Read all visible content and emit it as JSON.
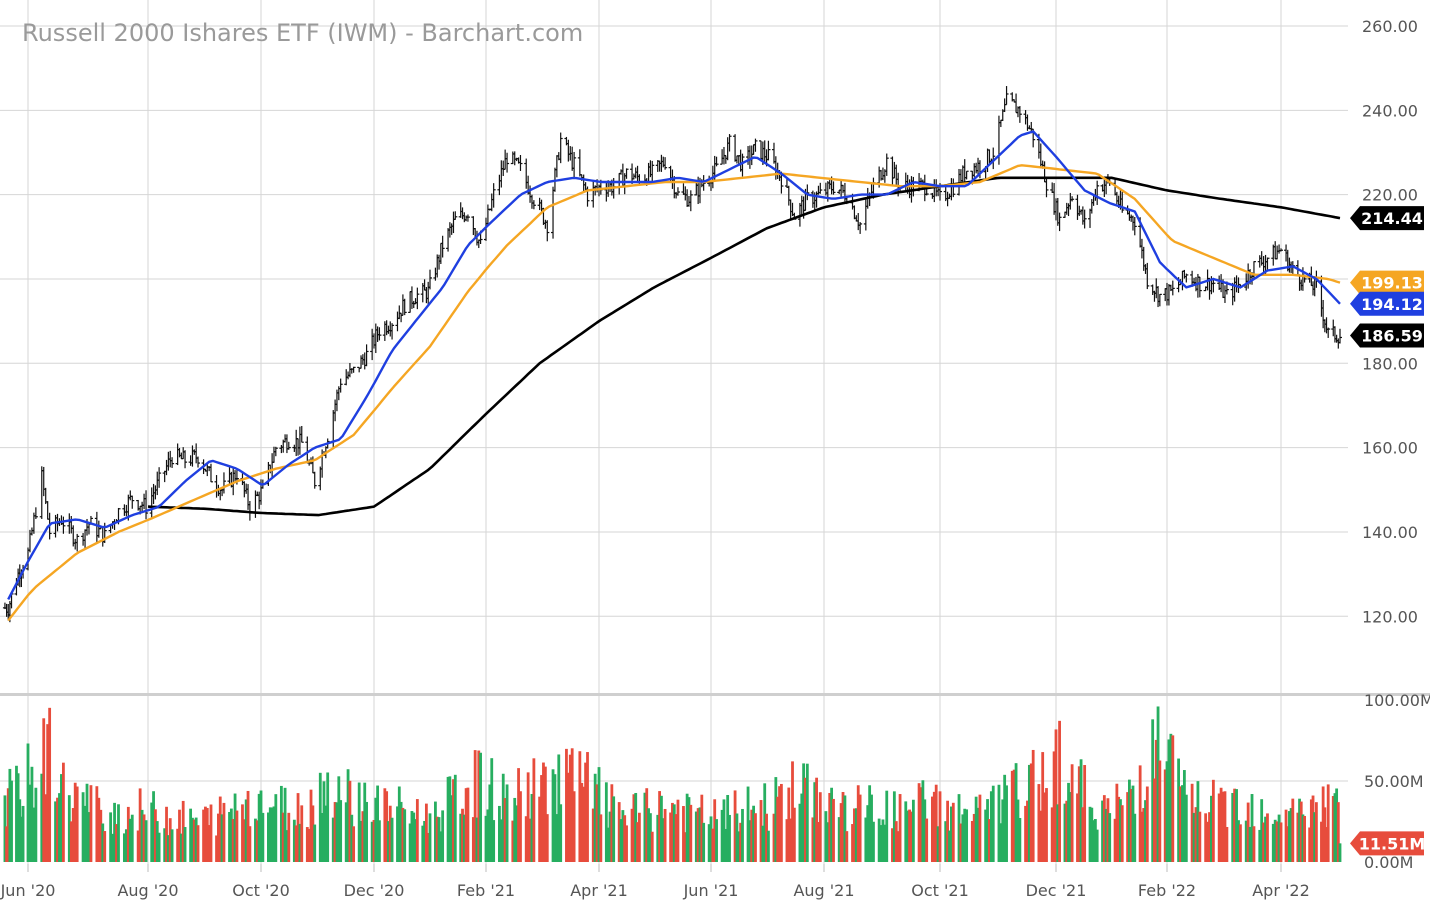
{
  "chart_data": {
    "type": "line",
    "title": "Russell 2000 Ishares ETF (IWM) - Barchart.com",
    "x_tick_labels": [
      "Jun '20",
      "Aug '20",
      "Oct '20",
      "Dec '20",
      "Feb '21",
      "Apr '21",
      "Jun '21",
      "Aug '21",
      "Oct '21",
      "Dec '21",
      "Feb '22",
      "Apr '22"
    ],
    "y_tick_labels": [
      "260.00",
      "240.00",
      "220.00",
      "200.00",
      "180.00",
      "160.00",
      "140.00",
      "120.00"
    ],
    "ylim": [
      112,
      260
    ],
    "volume_tick_labels": [
      "100.00M",
      "50.00M",
      "0.00M"
    ],
    "volume_ylim": [
      0,
      100
    ],
    "grid": true,
    "colors": {
      "price_bar": "#111111",
      "ma_20": "#1f3fe0",
      "ma_50": "#f5a623",
      "ma_200": "#000000",
      "volume_up": "#27ae60",
      "volume_down": "#e74c3c"
    },
    "series": [
      {
        "role": "price",
        "points": [
          [
            "2020-05-20",
            122
          ],
          [
            "2020-05-26",
            130
          ],
          [
            "2020-06-01",
            135
          ],
          [
            "2020-06-08",
            153
          ],
          [
            "2020-06-12",
            140
          ],
          [
            "2020-06-18",
            143
          ],
          [
            "2020-06-26",
            138
          ],
          [
            "2020-07-02",
            142
          ],
          [
            "2020-07-10",
            139
          ],
          [
            "2020-07-17",
            145
          ],
          [
            "2020-07-24",
            148
          ],
          [
            "2020-07-31",
            146
          ],
          [
            "2020-08-07",
            152
          ],
          [
            "2020-08-14",
            158
          ],
          [
            "2020-08-21",
            157
          ],
          [
            "2020-08-28",
            158
          ],
          [
            "2020-09-04",
            153
          ],
          [
            "2020-09-10",
            150
          ],
          [
            "2020-09-18",
            154
          ],
          [
            "2020-09-25",
            146
          ],
          [
            "2020-10-02",
            150
          ],
          [
            "2020-10-09",
            160
          ],
          [
            "2020-10-16",
            162
          ],
          [
            "2020-10-23",
            161
          ],
          [
            "2020-10-30",
            152
          ],
          [
            "2020-11-06",
            163
          ],
          [
            "2020-11-13",
            176
          ],
          [
            "2020-11-20",
            178
          ],
          [
            "2020-11-27",
            182
          ],
          [
            "2020-12-04",
            188
          ],
          [
            "2020-12-11",
            190
          ],
          [
            "2020-12-18",
            194
          ],
          [
            "2020-12-24",
            196
          ],
          [
            "2020-12-31",
            197
          ],
          [
            "2021-01-08",
            208
          ],
          [
            "2021-01-15",
            214
          ],
          [
            "2021-01-22",
            216
          ],
          [
            "2021-01-29",
            208
          ],
          [
            "2021-02-05",
            220
          ],
          [
            "2021-02-12",
            229
          ],
          [
            "2021-02-19",
            226
          ],
          [
            "2021-02-26",
            219
          ],
          [
            "2021-03-05",
            213
          ],
          [
            "2021-03-12",
            233
          ],
          [
            "2021-03-19",
            227
          ],
          [
            "2021-03-26",
            220
          ],
          [
            "2021-04-02",
            222
          ],
          [
            "2021-04-09",
            222
          ],
          [
            "2021-04-16",
            225
          ],
          [
            "2021-04-23",
            224
          ],
          [
            "2021-04-30",
            225
          ],
          [
            "2021-05-07",
            228
          ],
          [
            "2021-05-14",
            220
          ],
          [
            "2021-05-21",
            219
          ],
          [
            "2021-05-28",
            223
          ],
          [
            "2021-06-04",
            226
          ],
          [
            "2021-06-11",
            232
          ],
          [
            "2021-06-18",
            227
          ],
          [
            "2021-06-25",
            231
          ],
          [
            "2021-07-02",
            229
          ],
          [
            "2021-07-09",
            224
          ],
          [
            "2021-07-16",
            215
          ],
          [
            "2021-07-23",
            219
          ],
          [
            "2021-07-30",
            220
          ],
          [
            "2021-08-06",
            222
          ],
          [
            "2021-08-13",
            220
          ],
          [
            "2021-08-20",
            213
          ],
          [
            "2021-08-27",
            222
          ],
          [
            "2021-09-03",
            228
          ],
          [
            "2021-09-10",
            222
          ],
          [
            "2021-09-17",
            222
          ],
          [
            "2021-09-24",
            222
          ],
          [
            "2021-10-01",
            219
          ],
          [
            "2021-10-08",
            222
          ],
          [
            "2021-10-15",
            226
          ],
          [
            "2021-10-22",
            227
          ],
          [
            "2021-10-29",
            230
          ],
          [
            "2021-11-05",
            242
          ],
          [
            "2021-11-12",
            240
          ],
          [
            "2021-11-19",
            234
          ],
          [
            "2021-11-26",
            223
          ],
          [
            "2021-12-03",
            214
          ],
          [
            "2021-12-10",
            220
          ],
          [
            "2021-12-17",
            213
          ],
          [
            "2021-12-24",
            222
          ],
          [
            "2021-12-31",
            223
          ],
          [
            "2022-01-07",
            216
          ],
          [
            "2022-01-14",
            214
          ],
          [
            "2022-01-21",
            200
          ],
          [
            "2022-01-28",
            196
          ],
          [
            "2022-02-04",
            197
          ],
          [
            "2022-02-11",
            201
          ],
          [
            "2022-02-18",
            199
          ],
          [
            "2022-02-25",
            199
          ],
          [
            "2022-03-04",
            196
          ],
          [
            "2022-03-11",
            199
          ],
          [
            "2022-03-18",
            203
          ],
          [
            "2022-03-25",
            205
          ],
          [
            "2022-04-01",
            207
          ],
          [
            "2022-04-08",
            202
          ],
          [
            "2022-04-14",
            200
          ],
          [
            "2022-04-22",
            198
          ],
          [
            "2022-04-29",
            187
          ],
          [
            "2022-05-06",
            186.59
          ]
        ]
      },
      {
        "role": "moving-average-20",
        "last_value": "194.12",
        "points": [
          [
            "2020-05-20",
            124
          ],
          [
            "2020-06-01",
            133
          ],
          [
            "2020-06-12",
            142
          ],
          [
            "2020-06-26",
            143
          ],
          [
            "2020-07-10",
            141
          ],
          [
            "2020-07-24",
            144
          ],
          [
            "2020-08-07",
            146
          ],
          [
            "2020-08-21",
            152
          ],
          [
            "2020-09-04",
            157
          ],
          [
            "2020-09-18",
            155
          ],
          [
            "2020-10-02",
            151
          ],
          [
            "2020-10-16",
            156
          ],
          [
            "2020-10-30",
            160
          ],
          [
            "2020-11-13",
            162
          ],
          [
            "2020-11-27",
            172
          ],
          [
            "2020-12-11",
            183
          ],
          [
            "2020-12-24",
            190
          ],
          [
            "2021-01-08",
            198
          ],
          [
            "2021-01-22",
            208
          ],
          [
            "2021-02-05",
            214
          ],
          [
            "2021-02-19",
            220
          ],
          [
            "2021-03-05",
            223
          ],
          [
            "2021-03-19",
            224
          ],
          [
            "2021-04-02",
            223
          ],
          [
            "2021-04-16",
            223
          ],
          [
            "2021-04-30",
            223
          ],
          [
            "2021-05-14",
            224
          ],
          [
            "2021-05-28",
            223
          ],
          [
            "2021-06-11",
            226
          ],
          [
            "2021-06-25",
            229
          ],
          [
            "2021-07-09",
            225
          ],
          [
            "2021-07-23",
            220
          ],
          [
            "2021-08-06",
            219
          ],
          [
            "2021-08-20",
            220
          ],
          [
            "2021-09-03",
            220
          ],
          [
            "2021-09-17",
            223
          ],
          [
            "2021-10-01",
            222
          ],
          [
            "2021-10-15",
            222
          ],
          [
            "2021-10-29",
            228
          ],
          [
            "2021-11-12",
            234
          ],
          [
            "2021-11-19",
            235
          ],
          [
            "2021-12-03",
            228
          ],
          [
            "2021-12-17",
            221
          ],
          [
            "2021-12-31",
            218
          ],
          [
            "2022-01-14",
            216
          ],
          [
            "2022-01-28",
            204
          ],
          [
            "2022-02-11",
            198
          ],
          [
            "2022-02-25",
            200
          ],
          [
            "2022-03-11",
            198
          ],
          [
            "2022-03-25",
            202
          ],
          [
            "2022-04-08",
            203
          ],
          [
            "2022-04-22",
            200
          ],
          [
            "2022-05-06",
            194.12
          ]
        ]
      },
      {
        "role": "moving-average-50",
        "last_value": "199.13",
        "points": [
          [
            "2020-05-20",
            119
          ],
          [
            "2020-06-05",
            127
          ],
          [
            "2020-06-26",
            135
          ],
          [
            "2020-07-17",
            140
          ],
          [
            "2020-08-07",
            144
          ],
          [
            "2020-08-28",
            148
          ],
          [
            "2020-09-18",
            152
          ],
          [
            "2020-10-09",
            155
          ],
          [
            "2020-10-30",
            157
          ],
          [
            "2020-11-20",
            163
          ],
          [
            "2020-12-11",
            174
          ],
          [
            "2021-01-01",
            184
          ],
          [
            "2021-01-22",
            197
          ],
          [
            "2021-02-12",
            208
          ],
          [
            "2021-03-05",
            217
          ],
          [
            "2021-03-26",
            221
          ],
          [
            "2021-04-16",
            222
          ],
          [
            "2021-05-07",
            223
          ],
          [
            "2021-05-28",
            223
          ],
          [
            "2021-06-18",
            224
          ],
          [
            "2021-07-09",
            225
          ],
          [
            "2021-07-30",
            224
          ],
          [
            "2021-08-20",
            223
          ],
          [
            "2021-09-10",
            222
          ],
          [
            "2021-10-01",
            222
          ],
          [
            "2021-10-22",
            223
          ],
          [
            "2021-11-12",
            227
          ],
          [
            "2021-12-03",
            226
          ],
          [
            "2021-12-24",
            225
          ],
          [
            "2022-01-14",
            219
          ],
          [
            "2022-02-04",
            209
          ],
          [
            "2022-02-25",
            205
          ],
          [
            "2022-03-18",
            201
          ],
          [
            "2022-04-08",
            201
          ],
          [
            "2022-04-29",
            200
          ],
          [
            "2022-05-06",
            199.13
          ]
        ]
      },
      {
        "role": "moving-average-200",
        "last_value": "214.44",
        "points": [
          [
            "2020-08-01",
            146
          ],
          [
            "2020-09-01",
            145.5
          ],
          [
            "2020-10-01",
            144.5
          ],
          [
            "2020-11-01",
            144
          ],
          [
            "2020-12-01",
            146
          ],
          [
            "2021-01-01",
            155
          ],
          [
            "2021-02-01",
            168
          ],
          [
            "2021-03-01",
            180
          ],
          [
            "2021-04-01",
            190
          ],
          [
            "2021-05-01",
            198
          ],
          [
            "2021-06-01",
            205
          ],
          [
            "2021-07-01",
            212
          ],
          [
            "2021-08-01",
            217
          ],
          [
            "2021-09-01",
            220
          ],
          [
            "2021-10-01",
            222
          ],
          [
            "2021-11-01",
            224
          ],
          [
            "2021-12-01",
            224
          ],
          [
            "2022-01-01",
            224
          ],
          [
            "2022-02-01",
            221
          ],
          [
            "2022-03-01",
            219
          ],
          [
            "2022-04-01",
            217
          ],
          [
            "2022-05-06",
            214.44
          ]
        ]
      },
      {
        "role": "volume",
        "last_value": "11.51M",
        "points": [
          [
            "2020-05-22",
            40
          ],
          [
            "2020-06-05",
            55
          ],
          [
            "2020-06-12",
            70
          ],
          [
            "2020-06-19",
            45
          ],
          [
            "2020-07-03",
            35
          ],
          [
            "2020-07-17",
            30
          ],
          [
            "2020-07-31",
            32
          ],
          [
            "2020-08-14",
            28
          ],
          [
            "2020-08-28",
            25
          ],
          [
            "2020-09-11",
            30
          ],
          [
            "2020-09-25",
            40
          ],
          [
            "2020-10-09",
            35
          ],
          [
            "2020-10-23",
            32
          ],
          [
            "2020-11-06",
            48
          ],
          [
            "2020-11-20",
            40
          ],
          [
            "2020-12-04",
            35
          ],
          [
            "2020-12-18",
            32
          ],
          [
            "2021-01-01",
            28
          ],
          [
            "2021-01-15",
            40
          ],
          [
            "2021-01-29",
            50
          ],
          [
            "2021-02-12",
            38
          ],
          [
            "2021-02-26",
            45
          ],
          [
            "2021-03-12",
            55
          ],
          [
            "2021-03-26",
            48
          ],
          [
            "2021-04-09",
            32
          ],
          [
            "2021-04-23",
            30
          ],
          [
            "2021-05-07",
            35
          ],
          [
            "2021-05-21",
            30
          ],
          [
            "2021-06-04",
            28
          ],
          [
            "2021-06-18",
            32
          ],
          [
            "2021-07-02",
            35
          ],
          [
            "2021-07-16",
            45
          ],
          [
            "2021-07-30",
            40
          ],
          [
            "2021-08-13",
            32
          ],
          [
            "2021-08-27",
            35
          ],
          [
            "2021-09-10",
            30
          ],
          [
            "2021-09-24",
            38
          ],
          [
            "2021-10-08",
            32
          ],
          [
            "2021-10-22",
            30
          ],
          [
            "2021-11-05",
            40
          ],
          [
            "2021-11-19",
            48
          ],
          [
            "2021-12-03",
            65
          ],
          [
            "2021-12-17",
            42
          ],
          [
            "2021-12-31",
            30
          ],
          [
            "2022-01-14",
            45
          ],
          [
            "2022-01-28",
            75
          ],
          [
            "2022-02-11",
            40
          ],
          [
            "2022-02-25",
            35
          ],
          [
            "2022-03-11",
            38
          ],
          [
            "2022-03-25",
            32
          ],
          [
            "2022-04-08",
            30
          ],
          [
            "2022-04-22",
            35
          ],
          [
            "2022-05-06",
            11.51
          ]
        ]
      }
    ]
  }
}
